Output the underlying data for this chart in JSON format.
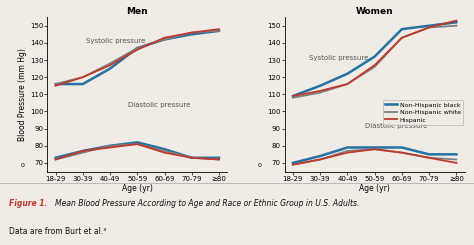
{
  "age_labels": [
    "18-29",
    "30-39",
    "40-49",
    "50-59",
    "60-69",
    "70-79",
    "≥80"
  ],
  "men": {
    "systolic": {
      "nhb": [
        116,
        116,
        125,
        137,
        142,
        145,
        147
      ],
      "nhw": [
        116,
        120,
        128,
        137,
        142,
        146,
        147
      ],
      "hisp": [
        115,
        120,
        127,
        136,
        143,
        146,
        148
      ]
    },
    "diastolic": {
      "nhb": [
        73,
        77,
        80,
        82,
        78,
        73,
        73
      ],
      "nhw": [
        72,
        76,
        80,
        81,
        77,
        73,
        72
      ],
      "hisp": [
        72,
        77,
        79,
        81,
        76,
        73,
        72
      ]
    }
  },
  "women": {
    "systolic": {
      "nhb": [
        109,
        115,
        122,
        132,
        148,
        150,
        152
      ],
      "nhw": [
        108,
        111,
        116,
        126,
        143,
        149,
        150
      ],
      "hisp": [
        109,
        112,
        116,
        127,
        143,
        149,
        153
      ]
    },
    "diastolic": {
      "nhb": [
        70,
        74,
        79,
        79,
        79,
        75,
        75
      ],
      "nhw": [
        69,
        72,
        77,
        78,
        76,
        73,
        72
      ],
      "hisp": [
        69,
        72,
        76,
        78,
        76,
        73,
        70
      ]
    }
  },
  "colors": {
    "nhb": "#2471A3",
    "nhw": "#7f7f7f",
    "hisp": "#C0392B"
  },
  "linewidths": {
    "nhb": 1.8,
    "nhw": 1.3,
    "hisp": 1.3
  },
  "ylim": [
    65,
    155
  ],
  "yticks": [
    70,
    80,
    90,
    100,
    110,
    120,
    130,
    140,
    150
  ],
  "ylabel": "Blood Pressure (mm Hg)",
  "xlabel": "Age (yr)",
  "title_men": "Men",
  "title_women": "Women",
  "legend_labels": [
    "Non-Hispanic black",
    "Non-Hispanic white",
    "Hispanic"
  ],
  "caption_bold": "Figure 1.",
  "caption_rest": " Mean Blood Pressure According to Age and Race or Ethnic Group in U.S. Adults.",
  "caption2": "Data are from Burt et al.³",
  "bg_color": "#f0ebe4",
  "caption_color": "#c0392b",
  "caption_bg": "#e8e0d8",
  "annot_color": "#555555"
}
